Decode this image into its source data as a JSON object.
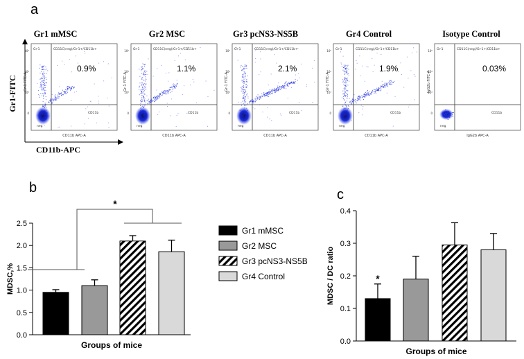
{
  "panel_a": {
    "label": "a",
    "y_axis_label": "Gr1-FITC",
    "x_axis_label": "CD11b-APC",
    "plots": [
      {
        "title": "Gr1 mMSC",
        "percent": "0.9%",
        "ylabel": "Gr-1 FITC-A",
        "xlabel": "CD11b APC-A",
        "gate_text": "CD11C(neg)/Gr-1+/CD11b+",
        "q1": "Gr-1",
        "q4": "CD11b",
        "q3": "neg"
      },
      {
        "title": "Gr2 MSC",
        "percent": "1.1%",
        "ylabel": "Gr-1 FITC-A",
        "xlabel": "CD11b APC-A",
        "gate_text": "CD11C(neg)/Gr-1+/CD11b+",
        "q1": "Gr-1",
        "q4": "CD11b",
        "q3": "neg"
      },
      {
        "title": "Gr3 pcNS3-NS5B",
        "percent": "2.1%",
        "ylabel": "Gr-1 FITC-A",
        "xlabel": "CD11b APC-A",
        "gate_text": "CD11C(neg)/Gr-1+/CD11b+",
        "q1": "Gr-1",
        "q4": "CD11b",
        "q3": "neg"
      },
      {
        "title": "Gr4 Control",
        "percent": "1.9%",
        "ylabel": "Gr-1 FITC-A",
        "xlabel": "CD11b APC-A",
        "gate_text": "CD11C(neg)/Gr-1+/CD11b+",
        "q1": "Gr-1",
        "q4": "CD11b",
        "q3": "neg"
      },
      {
        "title": "Isotype Control",
        "percent": "0.03%",
        "ylabel": "IgG2b FITC-A",
        "xlabel": "IgG2b APC-A",
        "gate_text": "CD11C(neg)/Gr-1+/CD11b+",
        "q1": "Gr-1",
        "q4": "CD11b",
        "q3": "neg"
      }
    ]
  },
  "chart_data": [
    {
      "panel": "b",
      "type": "bar",
      "categories": [
        "Gr1 mMSC",
        "Gr2 MSC",
        "Gr3 pcNS3-NS5B",
        "Gr4 Control"
      ],
      "values": [
        0.95,
        1.1,
        2.1,
        1.86
      ],
      "errors": [
        0.06,
        0.13,
        0.12,
        0.26
      ],
      "fills": [
        "black",
        "gray",
        "hatch",
        "lightgray"
      ],
      "ylabel": "MDSC,%",
      "xlabel": "Groups of mice",
      "ylim": [
        0,
        2.5
      ],
      "yticks": [
        "0.0",
        "0.5",
        "1.0",
        "1.5",
        "2.0",
        "2.5"
      ],
      "significance": "*",
      "legend": [
        "Gr1 mMSC",
        "Gr2 MSC",
        "Gr3 pcNS3-NS5B",
        "Gr4 Control"
      ]
    },
    {
      "panel": "c",
      "type": "bar",
      "categories": [
        "Gr1 mMSC",
        "Gr2 MSC",
        "Gr3 pcNS3-NS5B",
        "Gr4 Control"
      ],
      "values": [
        0.13,
        0.19,
        0.295,
        0.28
      ],
      "errors": [
        0.045,
        0.07,
        0.068,
        0.05
      ],
      "fills": [
        "black",
        "gray",
        "hatch",
        "lightgray"
      ],
      "ylabel": "MDSC / DC ratio",
      "xlabel": "Groups of mice",
      "ylim": [
        0,
        0.4
      ],
      "yticks": [
        "0.0",
        "0.1",
        "0.2",
        "0.3",
        "0.4"
      ],
      "significance": "*"
    }
  ],
  "panel_b_label": "b",
  "panel_c_label": "c",
  "colors": {
    "black": "#000000",
    "gray": "#999999",
    "lightgray": "#d9d9d9",
    "dots": "#1f2fe0"
  }
}
